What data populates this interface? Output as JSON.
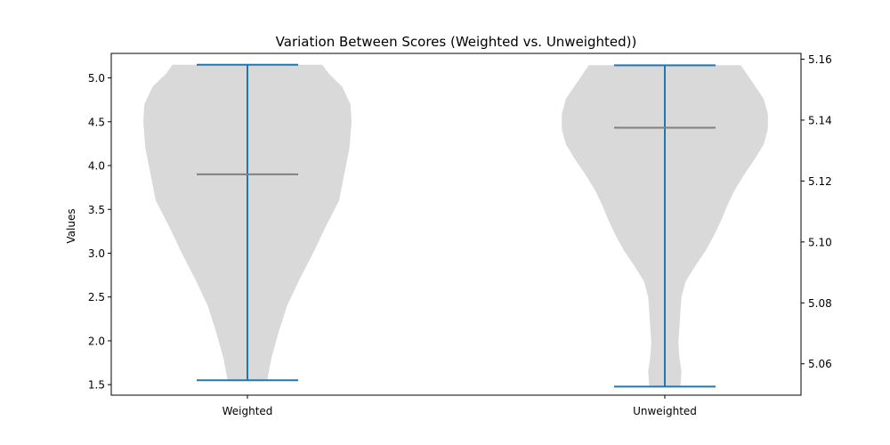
{
  "chart_data": {
    "type": "violin",
    "title": "Variation Between Scores (Weighted vs. Unweighted))",
    "xlabel": "",
    "ylabel": "Values",
    "categories": [
      "Weighted",
      "Unweighted"
    ],
    "ylim_left": [
      1.38,
      5.28
    ],
    "ylim_right": [
      5.0497,
      5.1619
    ],
    "yticks_left": [
      "1.5",
      "2.0",
      "2.5",
      "3.0",
      "3.5",
      "4.0",
      "4.5",
      "5.0"
    ],
    "yticks_right": [
      "5.06",
      "5.08",
      "5.10",
      "5.12",
      "5.14",
      "5.16"
    ],
    "grid": false,
    "colors": {
      "body": "#d9d9d9",
      "extrema": "#1f77b4",
      "median": "#808080"
    },
    "violins": [
      {
        "name": "Weighted",
        "axis": "left",
        "min": 1.55,
        "max": 5.15,
        "median": 3.9,
        "profile": [
          [
            1.55,
            0.19
          ],
          [
            1.8,
            0.23
          ],
          [
            2.1,
            0.3
          ],
          [
            2.4,
            0.38
          ],
          [
            2.7,
            0.5
          ],
          [
            3.0,
            0.63
          ],
          [
            3.3,
            0.75
          ],
          [
            3.6,
            0.88
          ],
          [
            3.9,
            0.93
          ],
          [
            4.2,
            0.98
          ],
          [
            4.5,
            1.0
          ],
          [
            4.7,
            0.99
          ],
          [
            4.9,
            0.91
          ],
          [
            5.05,
            0.78
          ],
          [
            5.15,
            0.72
          ]
        ]
      },
      {
        "name": "Unweighted",
        "axis": "right",
        "min": 5.0525,
        "max": 5.158,
        "median": 5.1375,
        "profile": [
          [
            5.0525,
            0.15
          ],
          [
            5.0575,
            0.16
          ],
          [
            5.062,
            0.14
          ],
          [
            5.067,
            0.13
          ],
          [
            5.072,
            0.14
          ],
          [
            5.077,
            0.15
          ],
          [
            5.082,
            0.16
          ],
          [
            5.087,
            0.2
          ],
          [
            5.092,
            0.29
          ],
          [
            5.097,
            0.39
          ],
          [
            5.102,
            0.47
          ],
          [
            5.107,
            0.54
          ],
          [
            5.112,
            0.6
          ],
          [
            5.117,
            0.67
          ],
          [
            5.122,
            0.76
          ],
          [
            5.127,
            0.86
          ],
          [
            5.132,
            0.95
          ],
          [
            5.137,
            0.99
          ],
          [
            5.142,
            0.99
          ],
          [
            5.147,
            0.95
          ],
          [
            5.152,
            0.85
          ],
          [
            5.158,
            0.73
          ]
        ]
      }
    ]
  }
}
